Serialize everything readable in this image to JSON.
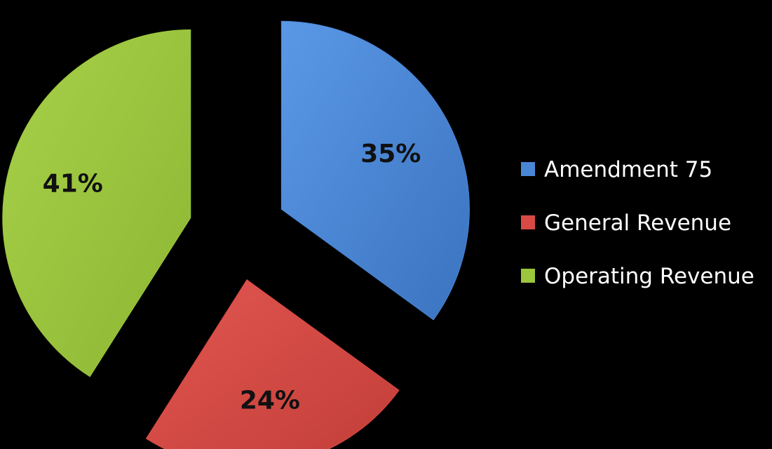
{
  "chart_data": {
    "type": "pie",
    "categories": [
      "Amendment 75",
      "General Revenue",
      "Operating Revenue"
    ],
    "values": [
      35,
      24,
      41
    ],
    "data_labels": [
      "35%",
      "24%",
      "41%"
    ],
    "colors": [
      "#4a86d6",
      "#d94a44",
      "#9cc63c"
    ],
    "exploded": true,
    "start_angle_deg": 0,
    "direction": "clockwise",
    "legend_position": "right",
    "title": ""
  },
  "background_color": "#000000"
}
